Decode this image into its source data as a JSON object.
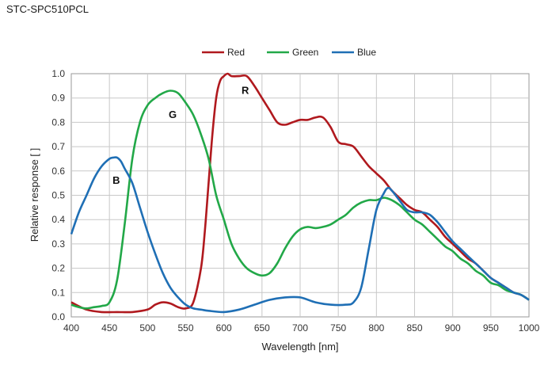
{
  "page": {
    "title": "STC-SPC510PCL"
  },
  "chart_data": {
    "type": "line",
    "xlabel": "Wavelength [nm]",
    "ylabel": "Relative response [ ]",
    "xlim": [
      400,
      1000
    ],
    "ylim": [
      0,
      1.0
    ],
    "xticks": [
      400,
      450,
      500,
      550,
      600,
      650,
      700,
      750,
      800,
      850,
      900,
      950,
      1000
    ],
    "yticks": [
      0.0,
      0.1,
      0.2,
      0.3,
      0.4,
      0.5,
      0.6,
      0.7,
      0.8,
      0.9,
      1.0
    ],
    "ytick_labels": [
      "0.0",
      "0.1",
      "0.2",
      "0.3",
      "0.4",
      "0.5",
      "0.6",
      "0.7",
      "0.8",
      "0.9",
      "1.0"
    ],
    "grid": true,
    "legend_position": "top-center",
    "series": [
      {
        "name": "Red",
        "color": "#b0191e",
        "x": [
          400,
          420,
          440,
          460,
          480,
          500,
          510,
          520,
          530,
          540,
          550,
          560,
          570,
          575,
          580,
          585,
          590,
          595,
          600,
          605,
          610,
          620,
          630,
          640,
          650,
          660,
          670,
          680,
          690,
          700,
          710,
          720,
          730,
          740,
          750,
          760,
          770,
          780,
          790,
          800,
          810,
          820,
          830,
          840,
          850,
          860,
          870,
          880,
          890,
          900,
          910,
          920,
          930,
          940,
          950,
          960,
          970,
          980,
          990,
          1000
        ],
        "y": [
          0.06,
          0.03,
          0.02,
          0.02,
          0.02,
          0.03,
          0.05,
          0.06,
          0.055,
          0.04,
          0.035,
          0.06,
          0.2,
          0.35,
          0.55,
          0.75,
          0.9,
          0.97,
          0.99,
          1.0,
          0.99,
          0.99,
          0.99,
          0.95,
          0.9,
          0.85,
          0.8,
          0.79,
          0.8,
          0.81,
          0.81,
          0.82,
          0.82,
          0.78,
          0.72,
          0.71,
          0.7,
          0.66,
          0.62,
          0.59,
          0.56,
          0.52,
          0.49,
          0.46,
          0.44,
          0.43,
          0.4,
          0.37,
          0.33,
          0.3,
          0.27,
          0.24,
          0.22,
          0.19,
          0.16,
          0.14,
          0.12,
          0.1,
          0.09,
          0.07
        ]
      },
      {
        "name": "Green",
        "color": "#22a848",
        "x": [
          400,
          410,
          420,
          430,
          440,
          450,
          460,
          470,
          480,
          490,
          500,
          510,
          520,
          530,
          540,
          550,
          560,
          570,
          580,
          590,
          600,
          610,
          620,
          630,
          640,
          650,
          660,
          670,
          680,
          690,
          700,
          710,
          720,
          730,
          740,
          750,
          760,
          770,
          780,
          790,
          800,
          810,
          820,
          830,
          840,
          850,
          860,
          870,
          880,
          890,
          900,
          910,
          920,
          930,
          940,
          950,
          960,
          970,
          980,
          990,
          1000
        ],
        "y": [
          0.05,
          0.04,
          0.035,
          0.04,
          0.045,
          0.06,
          0.15,
          0.38,
          0.65,
          0.8,
          0.87,
          0.9,
          0.92,
          0.93,
          0.92,
          0.88,
          0.83,
          0.75,
          0.65,
          0.5,
          0.4,
          0.3,
          0.24,
          0.2,
          0.18,
          0.17,
          0.18,
          0.22,
          0.28,
          0.33,
          0.36,
          0.37,
          0.365,
          0.37,
          0.38,
          0.4,
          0.42,
          0.45,
          0.47,
          0.48,
          0.48,
          0.49,
          0.48,
          0.46,
          0.43,
          0.4,
          0.38,
          0.35,
          0.32,
          0.29,
          0.27,
          0.24,
          0.22,
          0.19,
          0.17,
          0.14,
          0.13,
          0.11,
          0.1,
          0.09,
          0.07
        ]
      },
      {
        "name": "Blue",
        "color": "#1f6fb5",
        "x": [
          400,
          410,
          420,
          430,
          440,
          450,
          455,
          460,
          465,
          470,
          480,
          490,
          500,
          510,
          520,
          530,
          540,
          550,
          560,
          570,
          580,
          600,
          620,
          640,
          660,
          680,
          700,
          720,
          740,
          760,
          770,
          780,
          790,
          800,
          810,
          815,
          820,
          830,
          840,
          850,
          860,
          870,
          880,
          890,
          900,
          910,
          920,
          930,
          940,
          950,
          960,
          970,
          980,
          990,
          1000
        ],
        "y": [
          0.34,
          0.43,
          0.5,
          0.57,
          0.62,
          0.65,
          0.655,
          0.655,
          0.64,
          0.61,
          0.55,
          0.45,
          0.35,
          0.26,
          0.18,
          0.12,
          0.08,
          0.05,
          0.035,
          0.03,
          0.025,
          0.02,
          0.03,
          0.05,
          0.07,
          0.08,
          0.08,
          0.06,
          0.05,
          0.05,
          0.06,
          0.12,
          0.28,
          0.44,
          0.51,
          0.53,
          0.52,
          0.48,
          0.44,
          0.43,
          0.43,
          0.42,
          0.39,
          0.35,
          0.31,
          0.28,
          0.25,
          0.22,
          0.19,
          0.16,
          0.14,
          0.12,
          0.1,
          0.09,
          0.07
        ]
      }
    ],
    "annotations": [
      {
        "text": "R",
        "x": 628,
        "y": 0.93
      },
      {
        "text": "G",
        "x": 533,
        "y": 0.83
      },
      {
        "text": "B",
        "x": 459,
        "y": 0.56
      }
    ]
  }
}
